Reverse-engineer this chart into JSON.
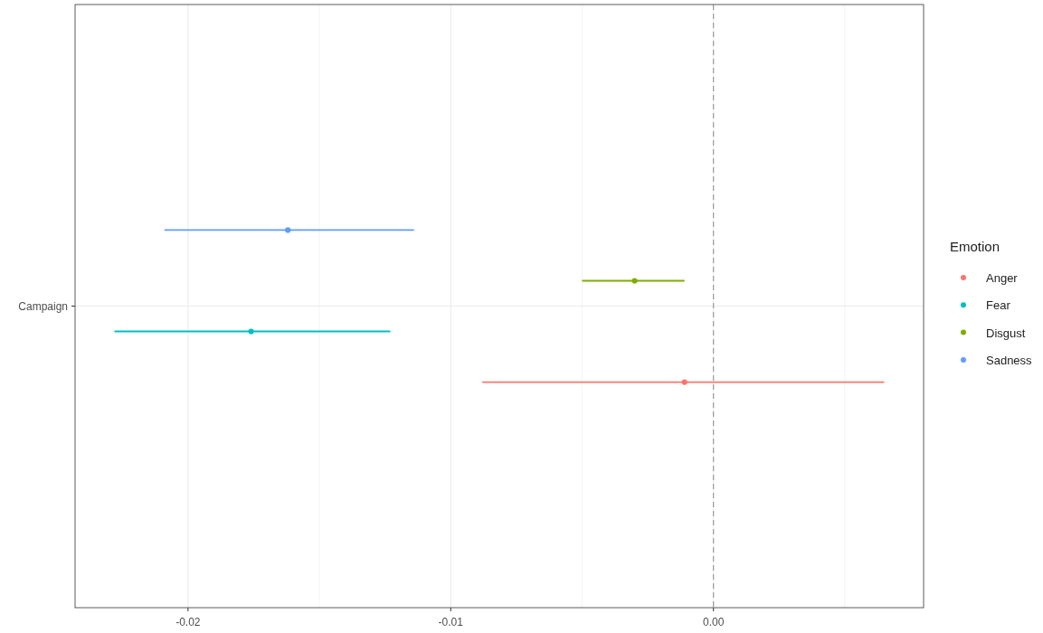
{
  "chart_data": {
    "type": "scatter",
    "orientation": "horizontal",
    "categories": [
      "Campaign"
    ],
    "series": [
      {
        "name": "Anger",
        "color": "#f8766d",
        "values": [
          -0.0011
        ],
        "errors": [
          [
            -0.0088,
            0.0065
          ]
        ]
      },
      {
        "name": "Fear",
        "color": "#00bfc4",
        "values": [
          -0.0176
        ],
        "errors": [
          [
            -0.0228,
            -0.0123
          ]
        ]
      },
      {
        "name": "Disgust",
        "color": "#7cae00",
        "values": [
          -0.003
        ],
        "errors": [
          [
            -0.005,
            -0.0011
          ]
        ]
      },
      {
        "name": "Sadness",
        "color": "#619cff",
        "values": [
          -0.0162
        ],
        "errors": [
          [
            -0.0209,
            -0.0114
          ]
        ]
      }
    ],
    "xlim": [
      -0.0243,
      0.008
    ],
    "xticks": [
      {
        "value": -0.02,
        "label": "-0.02"
      },
      {
        "value": -0.015,
        "label": null
      },
      {
        "value": -0.01,
        "label": "-0.01"
      },
      {
        "value": -0.005,
        "label": null
      },
      {
        "value": 0,
        "label": "0.00"
      },
      {
        "value": 0.005,
        "label": null
      }
    ],
    "ref_lines": [
      {
        "axis": "x",
        "value": 0,
        "color": "#999999",
        "line_style": "dashed"
      }
    ],
    "grid": true,
    "legend": "right",
    "legend_title": "Emotion",
    "marker": "circle"
  }
}
